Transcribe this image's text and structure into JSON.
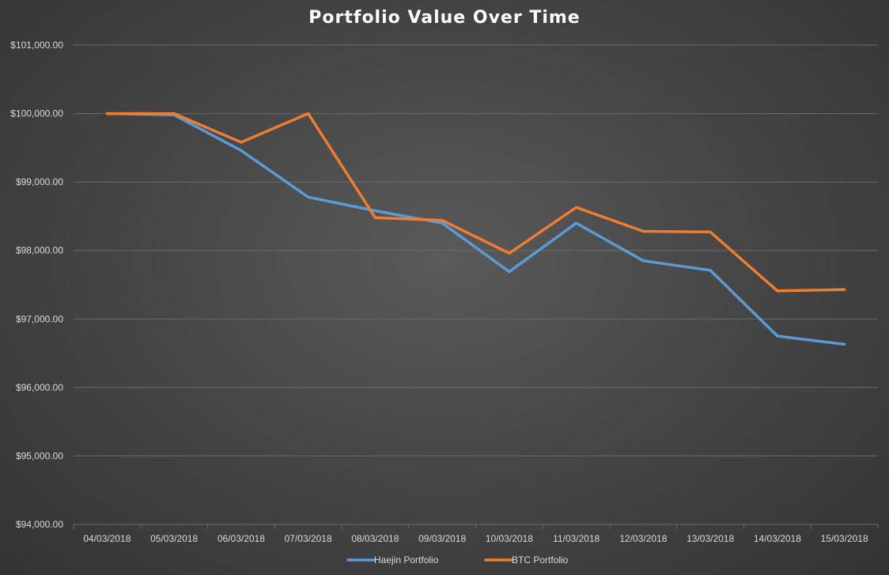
{
  "chart_data": {
    "type": "line",
    "title": "Portfolio Value Over Time",
    "xlabel": "",
    "ylabel": "",
    "categories": [
      "04/03/2018",
      "05/03/2018",
      "06/03/2018",
      "07/03/2018",
      "08/03/2018",
      "09/03/2018",
      "10/03/2018",
      "11/03/2018",
      "12/03/2018",
      "13/03/2018",
      "14/03/2018",
      "15/03/2018"
    ],
    "ylim": [
      94000,
      101000
    ],
    "yticks": [
      94000,
      95000,
      96000,
      97000,
      98000,
      99000,
      100000,
      101000
    ],
    "ytick_labels": [
      "$94,000.00",
      "$95,000.00",
      "$96,000.00",
      "$97,000.00",
      "$98,000.00",
      "$99,000.00",
      "$100,000.00",
      "$101,000.00"
    ],
    "grid": true,
    "legend_position": "bottom-center",
    "series": [
      {
        "name": "Haejin Portfolio",
        "color": "#5b9bd5",
        "values": [
          100000,
          99980,
          99460,
          98780,
          98580,
          98400,
          97690,
          98400,
          97850,
          97710,
          96750,
          96630
        ]
      },
      {
        "name": "BTC Portfolio",
        "color": "#ed7d31",
        "values": [
          100000,
          100000,
          99580,
          100000,
          98480,
          98440,
          97960,
          98630,
          98280,
          98270,
          97410,
          97430
        ]
      }
    ]
  },
  "colors": {
    "gridline": "#6b6b6b",
    "axis_text": "#d9d9d9",
    "title_text": "#ffffff"
  }
}
